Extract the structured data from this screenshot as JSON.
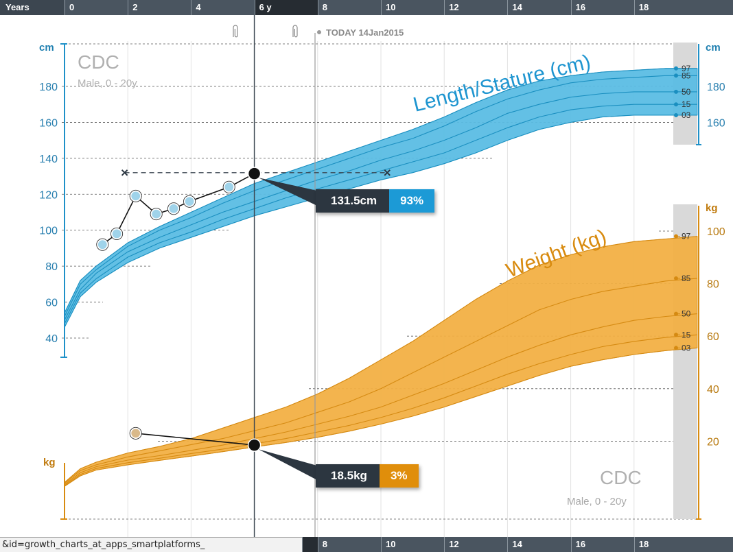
{
  "age_axis": {
    "label": "Years",
    "ticks": [
      "0",
      "2",
      "4",
      "6 y",
      "8",
      "10",
      "12",
      "14",
      "16",
      "18"
    ],
    "current": "6 y",
    "current_index": 3,
    "bottom_ticks": [
      "8",
      "10",
      "12",
      "14",
      "16",
      "18"
    ]
  },
  "status_url": "&id=growth_charts_at_apps_smartplatforms_",
  "today_label": "TODAY 14Jan2015",
  "source_top": {
    "name": "CDC",
    "subtitle": "Male, 0 - 20y"
  },
  "source_bottom": {
    "name": "CDC",
    "subtitle": "Male, 0 - 20y"
  },
  "tooltips": {
    "length": {
      "value": "131.5cm",
      "percentile": "93%"
    },
    "weight": {
      "value": "18.5kg",
      "percentile": "3%"
    }
  },
  "colors": {
    "length_band": "#5bbde4",
    "length_line": "#1a8fc0",
    "weight_band": "#f2b044",
    "weight_line": "#d58a12",
    "header_bar": "#4a5560",
    "point": "#1a1a1a"
  },
  "chart_data": [
    {
      "type": "line",
      "title": "Length/Stature (cm)",
      "x_unit": "years",
      "xlim": [
        0,
        20
      ],
      "ylabel": "cm",
      "y_ticks_left": [
        40,
        60,
        80,
        100,
        120,
        140,
        160,
        180
      ],
      "y_ticks_right": [
        160,
        180
      ],
      "ylim": [
        40,
        190
      ],
      "x": [
        0,
        0.5,
        1,
        2,
        3,
        4,
        5,
        6,
        7,
        8,
        9,
        10,
        11,
        12,
        13,
        14,
        15,
        16,
        17,
        18,
        19,
        20
      ],
      "series": [
        {
          "name": "97",
          "values": [
            54,
            72,
            80,
            93,
            102,
            110,
            118,
            126,
            132,
            138,
            144,
            150,
            156,
            163,
            171,
            178,
            183,
            186,
            188,
            189,
            190,
            190
          ]
        },
        {
          "name": "85",
          "values": [
            52,
            70,
            78,
            91,
            100,
            107,
            115,
            122,
            128,
            134,
            140,
            146,
            151,
            158,
            166,
            173,
            178,
            182,
            184,
            185,
            186,
            186
          ]
        },
        {
          "name": "50",
          "values": [
            50,
            67,
            76,
            88,
            96,
            103,
            110,
            116,
            122,
            128,
            133,
            139,
            144,
            150,
            157,
            165,
            170,
            174,
            176,
            177,
            177,
            177
          ]
        },
        {
          "name": "15",
          "values": [
            48,
            65,
            73,
            85,
            93,
            99,
            106,
            112,
            118,
            123,
            128,
            133,
            138,
            143,
            150,
            157,
            163,
            167,
            169,
            170,
            170,
            170
          ]
        },
        {
          "name": "03",
          "values": [
            46,
            63,
            71,
            82,
            90,
            96,
            102,
            108,
            113,
            118,
            123,
            128,
            132,
            137,
            143,
            150,
            156,
            160,
            163,
            164,
            164,
            164
          ]
        }
      ],
      "patient": {
        "x": [
          1.2,
          1.65,
          2.25,
          2.9,
          3.45,
          3.95,
          5.2,
          6.0
        ],
        "y": [
          92,
          98,
          119,
          109,
          112,
          116,
          124,
          131.5
        ]
      },
      "target_line": {
        "x": [
          1.9,
          10.2
        ],
        "y": 132
      }
    },
    {
      "type": "line",
      "title": "Weight (kg)",
      "x_unit": "years",
      "xlim": [
        0,
        20
      ],
      "ylabel": "kg",
      "y_ticks_right": [
        20,
        40,
        60,
        80,
        100
      ],
      "ylim": [
        0,
        105
      ],
      "x": [
        0,
        0.5,
        1,
        2,
        3,
        4,
        5,
        6,
        7,
        8,
        9,
        10,
        11,
        12,
        13,
        14,
        15,
        16,
        17,
        18,
        19,
        20
      ],
      "series": [
        {
          "name": "97",
          "values": [
            4.3,
            9.5,
            12,
            15.5,
            18,
            21,
            25,
            29,
            33,
            38,
            44,
            51,
            58,
            66,
            74,
            81,
            87,
            91,
            94,
            96,
            97,
            98
          ]
        },
        {
          "name": "85",
          "values": [
            4,
            8.8,
            11,
            14,
            16.3,
            18.7,
            21,
            24,
            27,
            31,
            35,
            40,
            46,
            52,
            58,
            64,
            70,
            74,
            77,
            79,
            81,
            82
          ]
        },
        {
          "name": "50",
          "values": [
            3.5,
            8,
            10.3,
            12.8,
            14.5,
            16.5,
            18.5,
            21,
            23.5,
            26.5,
            29.5,
            33,
            37.5,
            42,
            47,
            52,
            56.5,
            60.5,
            63.5,
            66,
            67.5,
            68.5
          ]
        },
        {
          "name": "15",
          "values": [
            3.1,
            7.3,
            9.6,
            11.8,
            13.5,
            15.3,
            17,
            19,
            21,
            23.5,
            26,
            29,
            32.5,
            36.5,
            41,
            45.5,
            49.5,
            53,
            56,
            58,
            59.5,
            60.5
          ]
        },
        {
          "name": "03",
          "values": [
            2.8,
            6.8,
            9,
            11,
            12.7,
            14.3,
            16,
            17.8,
            19.5,
            21.5,
            23.8,
            26.5,
            29.5,
            33,
            37,
            41,
            45,
            48.5,
            51,
            53,
            54.5,
            55.5
          ]
        }
      ],
      "patient": {
        "x": [
          2.25,
          6.0
        ],
        "y": [
          23,
          18.5
        ]
      }
    }
  ]
}
